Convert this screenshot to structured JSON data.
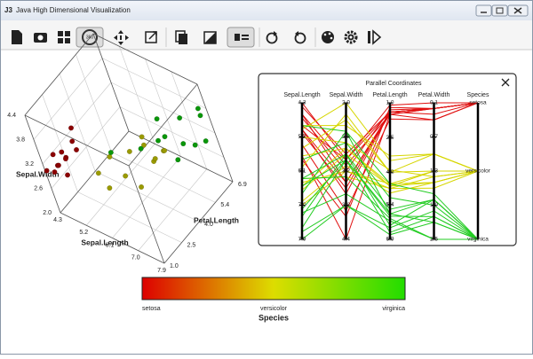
{
  "window": {
    "title": "Java High Dimensional Visualization"
  },
  "chart_data": [
    {
      "type": "scatter3d",
      "axes": [
        {
          "label": "Sepal.Length",
          "lim": [
            4.3,
            7.9
          ],
          "ticks": [
            4.3,
            5.2,
            6.1,
            {
              "value": 7,
              "label": "7.0"
            },
            7.9
          ]
        },
        {
          "label": "Sepal.Width",
          "lim": [
            2.0,
            4.4
          ],
          "ticks": [
            {
              "value": 2,
              "label": "2.0"
            },
            2.6,
            3.2,
            3.8,
            4.4
          ]
        },
        {
          "label": "Petal.Length",
          "lim": [
            1.0,
            6.9
          ],
          "ticks": [
            {
              "value": 1,
              "label": "1.0"
            },
            2.5,
            {
              "value": 4,
              "label": "4.0"
            },
            5.4,
            6.9
          ]
        }
      ],
      "series": [
        {
          "name": "setosa",
          "color": "#8b0000",
          "x": [
            5.1,
            4.9,
            4.7,
            4.6,
            5.0,
            5.4,
            4.6,
            5.0,
            4.4,
            5.7,
            5.8,
            4.3
          ],
          "y": [
            3.5,
            3.0,
            3.2,
            3.1,
            3.6,
            3.9,
            3.4,
            3.4,
            2.9,
            4.4,
            4.0,
            3.0
          ],
          "z": [
            1.4,
            1.4,
            1.3,
            1.5,
            1.4,
            1.7,
            1.4,
            1.5,
            1.4,
            1.5,
            1.2,
            1.1
          ]
        },
        {
          "name": "versicolor",
          "color": "#9a9a00",
          "x": [
            7.0,
            6.4,
            6.9,
            5.5,
            6.5,
            5.7,
            6.3,
            4.9,
            6.6,
            5.2,
            5.0,
            6.0
          ],
          "y": [
            3.2,
            3.2,
            3.1,
            2.3,
            2.8,
            2.8,
            3.3,
            2.4,
            2.9,
            2.7,
            2.0,
            2.2
          ],
          "z": [
            4.7,
            4.5,
            4.9,
            4.0,
            4.6,
            4.5,
            4.7,
            3.3,
            4.6,
            3.9,
            3.5,
            4.0
          ]
        },
        {
          "name": "virginica",
          "color": "#0a960a",
          "x": [
            6.3,
            5.8,
            7.1,
            6.3,
            6.5,
            7.6,
            4.9,
            7.3,
            6.7,
            7.2,
            7.7,
            7.9
          ],
          "y": [
            3.3,
            2.7,
            3.0,
            2.9,
            3.0,
            3.0,
            2.5,
            2.9,
            2.5,
            3.6,
            3.8,
            3.8
          ],
          "z": [
            6.0,
            5.1,
            5.9,
            5.6,
            5.8,
            6.6,
            4.5,
            6.3,
            5.8,
            6.1,
            6.7,
            6.4
          ]
        }
      ],
      "colorbar": {
        "title": "Species",
        "colors": [
          "#dd0000",
          "#dddd00",
          "#22dd00"
        ]
      }
    },
    {
      "type": "parallel",
      "title": "Parallel Coordinates",
      "dimensions": [
        {
          "name": "Sepal.Length",
          "lim": [
            4.3,
            7.9
          ],
          "ticks": [
            4.3,
            5.2,
            6.1,
            {
              "value": 7,
              "label": "7.0"
            },
            7.9
          ]
        },
        {
          "name": "Sepal.Width",
          "lim": [
            2.0,
            4.4
          ],
          "ticks": [
            {
              "value": 2,
              "label": "2.0"
            },
            2.6,
            3.2,
            3.8,
            4.4
          ]
        },
        {
          "name": "Petal.Length",
          "lim": [
            1.0,
            6.9
          ],
          "ticks": [
            {
              "value": 1,
              "label": "1.0"
            },
            2.5,
            {
              "value": 4,
              "label": "4.0"
            },
            5.4,
            6.9
          ]
        },
        {
          "name": "Petal.Width",
          "lim": [
            0.1,
            2.5
          ],
          "ticks": [
            0.1,
            0.7,
            1.3,
            1.9,
            2.5
          ]
        },
        {
          "name": "Species"
        }
      ],
      "series": [
        {
          "name": "setosa",
          "color": "#e01010",
          "rows": [
            [
              5.1,
              3.5,
              1.4,
              0.2
            ],
            [
              4.9,
              3.0,
              1.4,
              0.2
            ],
            [
              4.7,
              3.2,
              1.3,
              0.2
            ],
            [
              4.6,
              3.1,
              1.5,
              0.2
            ],
            [
              5.0,
              3.6,
              1.4,
              0.2
            ],
            [
              5.4,
              3.9,
              1.7,
              0.4
            ],
            [
              4.6,
              3.4,
              1.4,
              0.3
            ],
            [
              5.0,
              3.4,
              1.5,
              0.2
            ],
            [
              4.4,
              2.9,
              1.4,
              0.2
            ],
            [
              5.7,
              4.4,
              1.5,
              0.4
            ],
            [
              5.8,
              4.0,
              1.2,
              0.2
            ],
            [
              4.3,
              3.0,
              1.1,
              0.1
            ]
          ]
        },
        {
          "name": "versicolor",
          "color": "#d6d600",
          "rows": [
            [
              7.0,
              3.2,
              4.7,
              1.4
            ],
            [
              6.4,
              3.2,
              4.5,
              1.5
            ],
            [
              6.9,
              3.1,
              4.9,
              1.5
            ],
            [
              5.5,
              2.3,
              4.0,
              1.3
            ],
            [
              6.5,
              2.8,
              4.6,
              1.5
            ],
            [
              5.7,
              2.8,
              4.5,
              1.3
            ],
            [
              6.3,
              3.3,
              4.7,
              1.6
            ],
            [
              4.9,
              2.4,
              3.3,
              1.0
            ],
            [
              6.6,
              2.9,
              4.6,
              1.3
            ],
            [
              5.2,
              2.7,
              3.9,
              1.4
            ],
            [
              5.0,
              2.0,
              3.5,
              1.0
            ],
            [
              6.0,
              2.2,
              4.0,
              1.0
            ]
          ]
        },
        {
          "name": "virginica",
          "color": "#22cc22",
          "rows": [
            [
              6.3,
              3.3,
              6.0,
              2.5
            ],
            [
              5.8,
              2.7,
              5.1,
              1.9
            ],
            [
              7.1,
              3.0,
              5.9,
              2.1
            ],
            [
              6.3,
              2.9,
              5.6,
              1.8
            ],
            [
              6.5,
              3.0,
              5.8,
              2.2
            ],
            [
              7.6,
              3.0,
              6.6,
              2.1
            ],
            [
              4.9,
              2.5,
              4.5,
              1.7
            ],
            [
              7.3,
              2.9,
              6.3,
              1.8
            ],
            [
              6.7,
              2.5,
              5.8,
              1.8
            ],
            [
              7.2,
              3.6,
              6.1,
              2.5
            ],
            [
              7.7,
              3.8,
              6.7,
              2.2
            ],
            [
              7.9,
              3.8,
              6.4,
              2.0
            ]
          ]
        }
      ]
    }
  ]
}
